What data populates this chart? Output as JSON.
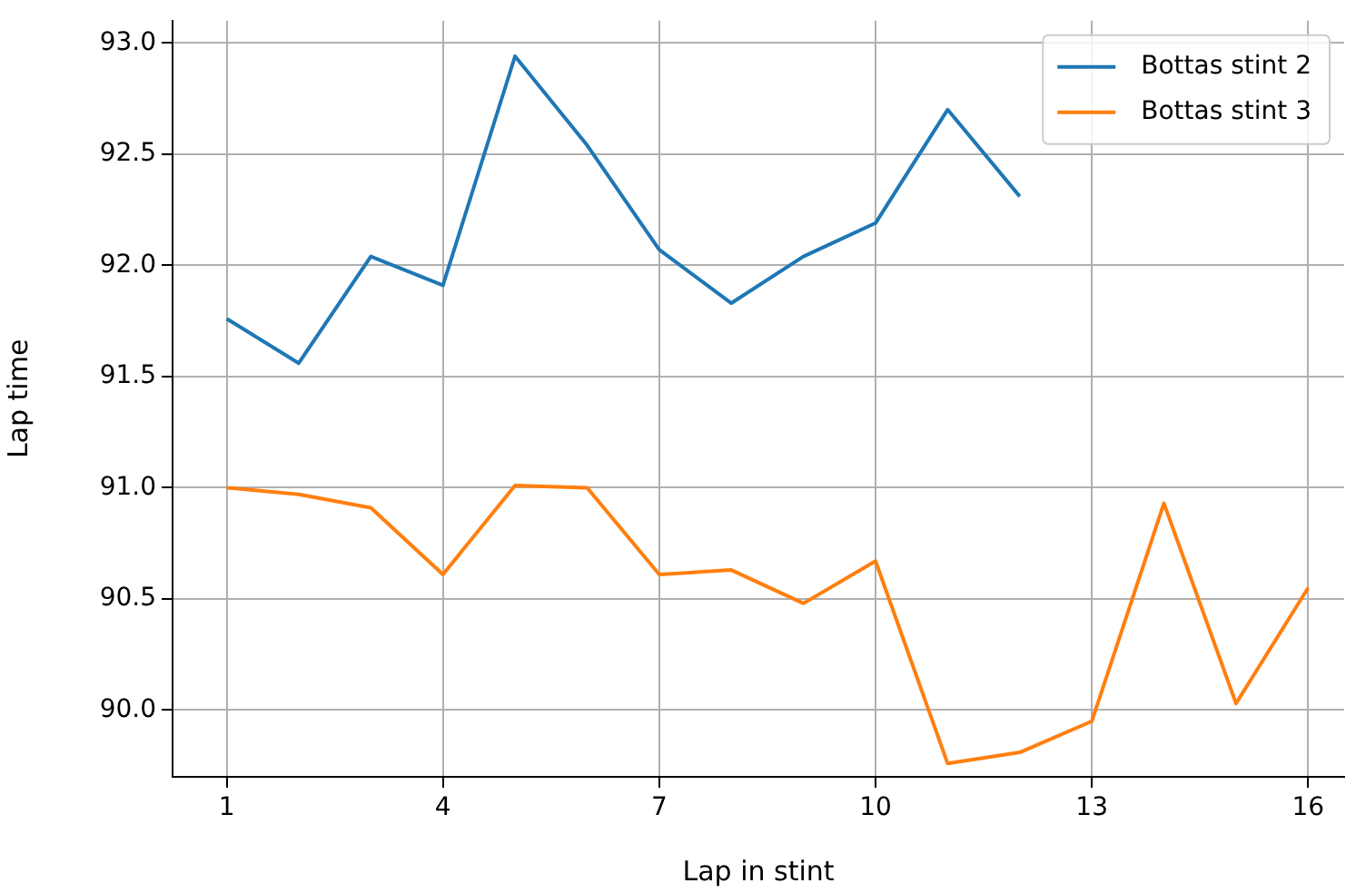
{
  "chart_data": {
    "type": "line",
    "xlabel": "Lap in stint",
    "ylabel": "Lap time",
    "series": [
      {
        "name": "Bottas stint 2",
        "color": "#1f77b4",
        "x": [
          1,
          2,
          3,
          4,
          5,
          6,
          7,
          8,
          9,
          10,
          11,
          12
        ],
        "values": [
          91.76,
          91.56,
          92.04,
          91.91,
          92.94,
          92.54,
          92.07,
          91.83,
          92.04,
          92.19,
          92.7,
          92.31
        ]
      },
      {
        "name": "Bottas stint 3",
        "color": "#ff7f0e",
        "x": [
          1,
          2,
          3,
          4,
          5,
          6,
          7,
          8,
          9,
          10,
          11,
          12,
          13,
          14,
          15,
          16
        ],
        "values": [
          91.0,
          90.97,
          90.91,
          90.61,
          91.01,
          91.0,
          90.61,
          90.63,
          90.48,
          90.67,
          89.76,
          89.81,
          89.95,
          90.93,
          90.03,
          90.55
        ]
      }
    ],
    "xlim": [
      0.25,
      16.5
    ],
    "xticks": [
      1,
      4,
      7,
      10,
      13,
      16
    ],
    "ylim": [
      89.7,
      93.1
    ],
    "yticks": [
      {
        "value": 90,
        "label": "90.0"
      },
      {
        "value": 90.5,
        "label": "90.5"
      },
      {
        "value": 91,
        "label": "91.0"
      },
      {
        "value": 91.5,
        "label": "91.5"
      },
      {
        "value": 92,
        "label": "92.0"
      },
      {
        "value": 92.5,
        "label": "92.5"
      },
      {
        "value": 93,
        "label": "93.0"
      }
    ],
    "grid": true,
    "legend": "top right",
    "marker": "none",
    "line_style": "solid"
  }
}
